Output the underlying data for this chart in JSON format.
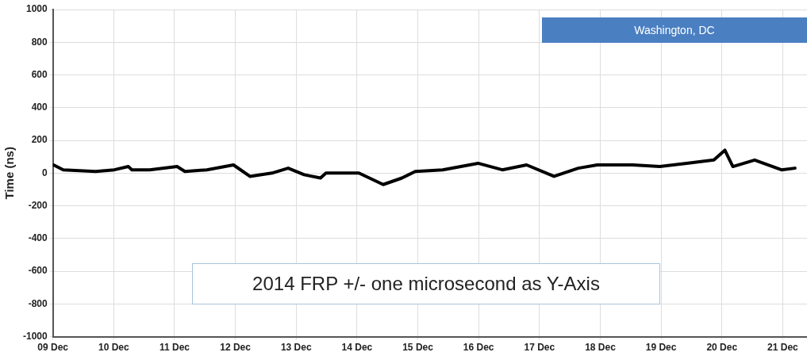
{
  "chart_data": {
    "type": "line",
    "ylabel": "Time (ns)",
    "annotations": [
      "Washington, DC",
      "2014 FRP +/- one microsecond as Y-Axis"
    ],
    "x": [
      "--12-09T00:15",
      "--12-09T04:05",
      "--12-09T16:50",
      "--12-10T00:15",
      "--12-10T05:45",
      "--12-10T07:10",
      "--12-10T14:10",
      "--12-11T01:00",
      "--12-11T04:05",
      "--12-11T12:45",
      "--12-11T23:15",
      "--12-12T05:45",
      "--12-12T14:25",
      "--12-12T20:50",
      "--12-13T03:10",
      "--12-13T09:35",
      "--12-13T11:45",
      "--12-14T00:45",
      "--12-14T10:20",
      "--12-14T17:45",
      "--12-14T23:00",
      "--12-15T09:50",
      "--12-15T23:45",
      "--12-16T09:20",
      "--12-16T18:55",
      "--12-17T05:45",
      "--12-17T15:20",
      "--12-17T22:50",
      "--12-18T12:45",
      "--12-18T23:30",
      "--12-19T10:05",
      "--12-19T20:50",
      "--12-20T01:10",
      "--12-20T04:20",
      "--12-20T12:55",
      "--12-20T23:30",
      "--12-21T04:50"
    ],
    "series": [
      {
        "color": "#000000",
        "values": [
          50,
          20,
          10,
          20,
          40,
          20,
          20,
          40,
          10,
          20,
          50,
          -20,
          0,
          30,
          -10,
          -30,
          0,
          0,
          -70,
          -30,
          10,
          20,
          60,
          20,
          50,
          -20,
          30,
          50,
          50,
          40,
          60,
          80,
          140,
          40,
          80,
          20,
          30
        ]
      }
    ],
    "xlim": [
      "--12-09",
      "--12-21T09:35"
    ],
    "xticks": [
      {
        "value": "--12-09",
        "label": "09 Dec"
      },
      {
        "value": "--12-10",
        "label": "10 Dec"
      },
      {
        "value": "--12-11",
        "label": "11 Dec"
      },
      {
        "value": "--12-12",
        "label": "12 Dec"
      },
      {
        "value": "--12-13",
        "label": "13 Dec"
      },
      {
        "value": "--12-14",
        "label": "14 Dec"
      },
      {
        "value": "--12-15",
        "label": "15 Dec"
      },
      {
        "value": "--12-16",
        "label": "16 Dec"
      },
      {
        "value": "--12-17",
        "label": "17 Dec"
      },
      {
        "value": "--12-18",
        "label": "18 Dec"
      },
      {
        "value": "--12-19",
        "label": "19 Dec"
      },
      {
        "value": "--12-20",
        "label": "20 Dec"
      },
      {
        "value": "--12-21",
        "label": "21 Dec"
      }
    ],
    "ylim": [
      -1000,
      1000
    ],
    "yticks": [
      -1000,
      -800,
      -600,
      -400,
      -200,
      0,
      200,
      400,
      600,
      800,
      1000
    ],
    "grid": true,
    "marker": "none",
    "line_style": "solid"
  }
}
